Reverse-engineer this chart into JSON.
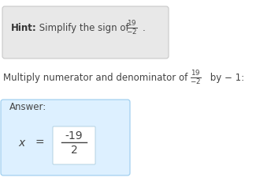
{
  "hint_bold": "Hint:",
  "hint_text": " Simplify the sign of ",
  "hint_frac": "$\\frac{19}{-2}$",
  "hint_period": ".",
  "hint_box_color": "#e8e8e8",
  "hint_box_edge": "#c8c8c8",
  "middle_text_1": "Multiply numerator and denominator of ",
  "middle_frac": "$\\frac{19}{-2}$",
  "middle_text_2": " by − 1:",
  "answer_label": "Answer:",
  "answer_expr": "$x = \\dfrac{-19}{2}$",
  "answer_frac_num": "-19",
  "answer_frac_den": "2",
  "answer_box_color": "#ddf0ff",
  "answer_box_edge": "#99ccee",
  "answer_inner_box_color": "#ffffff",
  "answer_inner_box_edge": "#aaccdd",
  "bg_color": "#ffffff",
  "text_color": "#444444",
  "hint_bold_color": "#333333"
}
